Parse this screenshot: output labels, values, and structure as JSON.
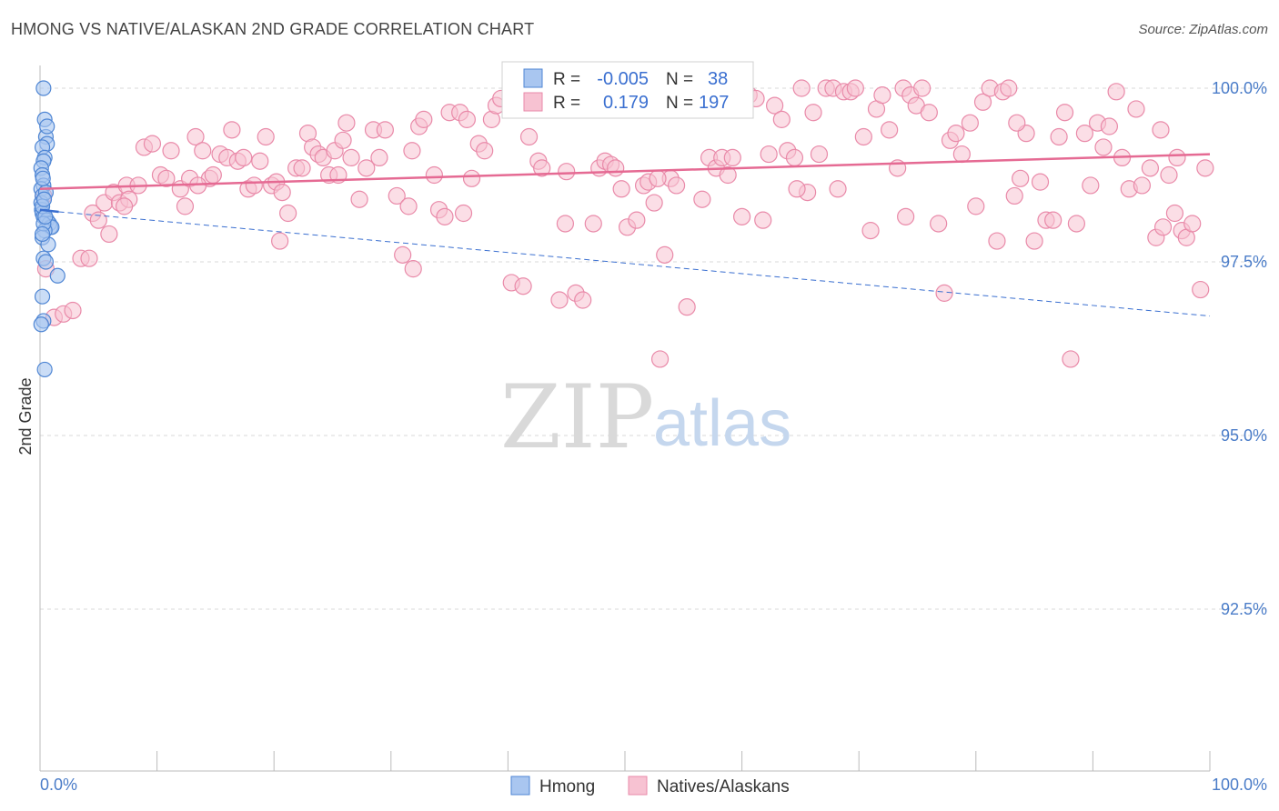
{
  "title": "HMONG VS NATIVE/ALASKAN 2ND GRADE CORRELATION CHART",
  "source": "Source: ZipAtlas.com",
  "colors": {
    "hmong_fill": "#a9c6f0",
    "hmong_stroke": "#4f86d4",
    "hmong_line": "#3a6fd0",
    "native_fill": "#f7c2d2",
    "native_stroke": "#e98aa9",
    "native_line": "#e56a93",
    "grid": "#d8d8d8",
    "tick_text": "#4a7cc8"
  },
  "chart_data": {
    "type": "scatter",
    "title": "HMONG VS NATIVE/ALASKAN 2ND GRADE CORRELATION CHART",
    "xlabel": "",
    "ylabel": "2nd Grade",
    "xlim": [
      0,
      100
    ],
    "ylim": [
      90,
      100.4
    ],
    "x_tick_labels": [
      "0.0%",
      "100.0%"
    ],
    "y_ticks": [
      {
        "value": 100.0,
        "label": "100.0%"
      },
      {
        "value": 97.5,
        "label": "97.5%"
      },
      {
        "value": 95.0,
        "label": "95.0%"
      },
      {
        "value": 92.5,
        "label": "92.5%"
      }
    ],
    "legend": {
      "r_label": "R =",
      "n_label": "N =",
      "entries": [
        {
          "name": "Hmong",
          "r": "-0.005",
          "n": "38"
        },
        {
          "name": "Natives/Alaskans",
          "r": "0.179",
          "n": "197"
        }
      ]
    },
    "series": [
      {
        "name": "Hmong",
        "trend": {
          "x": [
            0,
            1.6
          ],
          "y": [
            98.25,
            98.22
          ],
          "style": "solid"
        },
        "trend_extended": {
          "x": [
            1.6,
            100
          ],
          "y": [
            98.22,
            96.72
          ],
          "style": "dashed"
        },
        "points": [
          [
            0.3,
            100.0
          ],
          [
            0.4,
            99.55
          ],
          [
            0.5,
            99.3
          ],
          [
            0.6,
            99.2
          ],
          [
            0.2,
            99.15
          ],
          [
            0.4,
            99.0
          ],
          [
            0.3,
            98.95
          ],
          [
            0.1,
            98.85
          ],
          [
            0.2,
            98.75
          ],
          [
            0.3,
            98.6
          ],
          [
            0.1,
            98.55
          ],
          [
            0.2,
            98.45
          ],
          [
            0.1,
            98.35
          ],
          [
            0.15,
            98.25
          ],
          [
            0.2,
            98.2
          ],
          [
            0.3,
            98.15
          ],
          [
            0.6,
            98.1
          ],
          [
            0.8,
            98.05
          ],
          [
            0.9,
            98.0
          ],
          [
            1.0,
            98.0
          ],
          [
            0.4,
            97.95
          ],
          [
            0.2,
            97.85
          ],
          [
            0.7,
            97.75
          ],
          [
            0.3,
            97.55
          ],
          [
            0.5,
            97.5
          ],
          [
            1.5,
            97.3
          ],
          [
            0.2,
            97.0
          ],
          [
            0.3,
            96.65
          ],
          [
            0.1,
            96.6
          ],
          [
            0.4,
            95.95
          ],
          [
            0.2,
            98.3
          ],
          [
            0.5,
            98.5
          ],
          [
            0.3,
            98.05
          ],
          [
            0.2,
            97.9
          ],
          [
            0.6,
            99.45
          ],
          [
            0.25,
            98.7
          ],
          [
            0.35,
            98.4
          ],
          [
            0.45,
            98.15
          ]
        ]
      },
      {
        "name": "Natives/Alaskans",
        "trend": {
          "x": [
            0,
            100
          ],
          "y": [
            98.55,
            99.05
          ],
          "style": "solid"
        },
        "points": [
          [
            0.3,
            98.45
          ],
          [
            0.5,
            97.4
          ],
          [
            1.2,
            96.7
          ],
          [
            2.0,
            96.75
          ],
          [
            2.8,
            96.8
          ],
          [
            3.5,
            97.55
          ],
          [
            4.2,
            97.55
          ],
          [
            4.5,
            98.2
          ],
          [
            5.0,
            98.1
          ],
          [
            5.5,
            98.35
          ],
          [
            5.9,
            97.9
          ],
          [
            6.3,
            98.5
          ],
          [
            6.8,
            98.35
          ],
          [
            7.4,
            98.6
          ],
          [
            7.6,
            98.4
          ],
          [
            8.4,
            98.6
          ],
          [
            8.9,
            99.15
          ],
          [
            9.6,
            99.2
          ],
          [
            10.3,
            98.75
          ],
          [
            10.8,
            98.7
          ],
          [
            11.2,
            99.1
          ],
          [
            12.0,
            98.55
          ],
          [
            12.4,
            98.3
          ],
          [
            12.8,
            98.7
          ],
          [
            13.3,
            99.3
          ],
          [
            13.9,
            99.1
          ],
          [
            14.5,
            98.7
          ],
          [
            14.8,
            98.75
          ],
          [
            15.4,
            99.05
          ],
          [
            16.0,
            99.0
          ],
          [
            16.4,
            99.4
          ],
          [
            16.9,
            98.95
          ],
          [
            17.4,
            99.0
          ],
          [
            17.8,
            98.55
          ],
          [
            18.3,
            98.6
          ],
          [
            18.8,
            98.95
          ],
          [
            19.3,
            99.3
          ],
          [
            19.8,
            98.6
          ],
          [
            20.2,
            98.65
          ],
          [
            20.7,
            98.5
          ],
          [
            21.2,
            98.2
          ],
          [
            21.9,
            98.85
          ],
          [
            22.4,
            98.85
          ],
          [
            22.9,
            99.35
          ],
          [
            23.3,
            99.15
          ],
          [
            23.8,
            99.05
          ],
          [
            24.2,
            99.0
          ],
          [
            24.7,
            98.75
          ],
          [
            25.2,
            99.1
          ],
          [
            25.9,
            99.25
          ],
          [
            26.6,
            99.0
          ],
          [
            27.3,
            98.4
          ],
          [
            27.9,
            98.85
          ],
          [
            28.5,
            99.4
          ],
          [
            29.0,
            99.0
          ],
          [
            29.5,
            99.4
          ],
          [
            30.5,
            98.45
          ],
          [
            31.0,
            97.6
          ],
          [
            31.5,
            98.3
          ],
          [
            31.9,
            97.4
          ],
          [
            32.4,
            99.45
          ],
          [
            32.8,
            99.55
          ],
          [
            33.7,
            98.75
          ],
          [
            34.1,
            98.25
          ],
          [
            34.6,
            98.15
          ],
          [
            35.0,
            99.65
          ],
          [
            35.9,
            99.65
          ],
          [
            36.5,
            99.55
          ],
          [
            36.9,
            98.7
          ],
          [
            37.5,
            99.2
          ],
          [
            38.0,
            99.1
          ],
          [
            38.6,
            99.55
          ],
          [
            39.0,
            99.75
          ],
          [
            39.4,
            99.85
          ],
          [
            40.3,
            97.2
          ],
          [
            40.8,
            99.85
          ],
          [
            41.3,
            97.15
          ],
          [
            41.8,
            99.3
          ],
          [
            42.6,
            98.95
          ],
          [
            42.9,
            98.85
          ],
          [
            43.9,
            99.95
          ],
          [
            44.4,
            96.95
          ],
          [
            45.0,
            98.8
          ],
          [
            45.8,
            97.05
          ],
          [
            46.4,
            96.95
          ],
          [
            47.3,
            98.05
          ],
          [
            47.8,
            98.85
          ],
          [
            48.3,
            98.95
          ],
          [
            48.8,
            98.9
          ],
          [
            49.2,
            98.85
          ],
          [
            49.7,
            98.55
          ],
          [
            50.2,
            98.0
          ],
          [
            51.0,
            98.1
          ],
          [
            51.6,
            98.6
          ],
          [
            52.0,
            98.65
          ],
          [
            52.5,
            98.35
          ],
          [
            53.0,
            96.1
          ],
          [
            53.4,
            97.6
          ],
          [
            53.9,
            98.7
          ],
          [
            54.4,
            98.6
          ],
          [
            55.3,
            96.85
          ],
          [
            56.0,
            99.9
          ],
          [
            56.6,
            98.4
          ],
          [
            57.2,
            99.0
          ],
          [
            57.8,
            98.85
          ],
          [
            58.3,
            99.0
          ],
          [
            58.8,
            98.75
          ],
          [
            59.2,
            99.0
          ],
          [
            60.0,
            98.15
          ],
          [
            60.6,
            99.9
          ],
          [
            61.2,
            99.85
          ],
          [
            61.8,
            98.1
          ],
          [
            62.3,
            99.05
          ],
          [
            62.8,
            99.75
          ],
          [
            63.4,
            99.55
          ],
          [
            63.9,
            99.1
          ],
          [
            64.5,
            99.0
          ],
          [
            65.1,
            100.0
          ],
          [
            65.6,
            98.5
          ],
          [
            66.1,
            99.65
          ],
          [
            66.6,
            99.05
          ],
          [
            67.2,
            100.0
          ],
          [
            67.8,
            100.0
          ],
          [
            68.2,
            98.55
          ],
          [
            68.7,
            99.95
          ],
          [
            69.3,
            99.95
          ],
          [
            69.7,
            100.0
          ],
          [
            70.4,
            99.3
          ],
          [
            71.0,
            97.95
          ],
          [
            71.5,
            99.7
          ],
          [
            72.0,
            99.9
          ],
          [
            72.6,
            99.4
          ],
          [
            73.3,
            98.85
          ],
          [
            73.8,
            100.0
          ],
          [
            74.4,
            99.9
          ],
          [
            74.9,
            99.75
          ],
          [
            75.4,
            100.0
          ],
          [
            76.0,
            99.65
          ],
          [
            76.8,
            98.05
          ],
          [
            77.3,
            97.05
          ],
          [
            77.8,
            99.25
          ],
          [
            78.3,
            99.35
          ],
          [
            78.8,
            99.05
          ],
          [
            79.5,
            99.5
          ],
          [
            80.0,
            98.3
          ],
          [
            80.6,
            99.8
          ],
          [
            81.2,
            100.0
          ],
          [
            81.8,
            97.8
          ],
          [
            82.3,
            99.95
          ],
          [
            82.8,
            100.0
          ],
          [
            83.3,
            98.45
          ],
          [
            83.8,
            98.7
          ],
          [
            84.3,
            99.35
          ],
          [
            85.0,
            97.8
          ],
          [
            85.5,
            98.65
          ],
          [
            86.0,
            98.1
          ],
          [
            86.6,
            98.1
          ],
          [
            87.1,
            99.3
          ],
          [
            87.6,
            99.65
          ],
          [
            88.1,
            96.1
          ],
          [
            88.6,
            98.05
          ],
          [
            89.3,
            99.35
          ],
          [
            89.8,
            98.6
          ],
          [
            90.4,
            99.5
          ],
          [
            90.9,
            99.15
          ],
          [
            91.4,
            99.45
          ],
          [
            92.0,
            99.95
          ],
          [
            92.5,
            99.0
          ],
          [
            93.1,
            98.55
          ],
          [
            93.7,
            99.7
          ],
          [
            94.2,
            98.6
          ],
          [
            94.9,
            98.85
          ],
          [
            95.4,
            97.85
          ],
          [
            95.8,
            99.4
          ],
          [
            96.5,
            98.75
          ],
          [
            97.0,
            98.2
          ],
          [
            97.6,
            97.95
          ],
          [
            98.0,
            97.85
          ],
          [
            98.5,
            98.05
          ],
          [
            99.2,
            97.1
          ],
          [
            99.6,
            98.85
          ],
          [
            97.2,
            99.0
          ],
          [
            96.0,
            98.0
          ],
          [
            20.5,
            97.8
          ],
          [
            36.2,
            98.2
          ],
          [
            44.9,
            98.05
          ],
          [
            52.8,
            98.7
          ],
          [
            7.2,
            98.3
          ],
          [
            25.5,
            98.75
          ],
          [
            64.7,
            98.55
          ],
          [
            83.5,
            99.5
          ],
          [
            26.2,
            99.5
          ],
          [
            13.5,
            98.6
          ],
          [
            45.3,
            99.9
          ],
          [
            58.0,
            99.95
          ],
          [
            74.0,
            98.15
          ],
          [
            31.8,
            99.1
          ]
        ]
      }
    ],
    "watermark": {
      "zip": "ZIP",
      "atlas": "atlas"
    }
  }
}
